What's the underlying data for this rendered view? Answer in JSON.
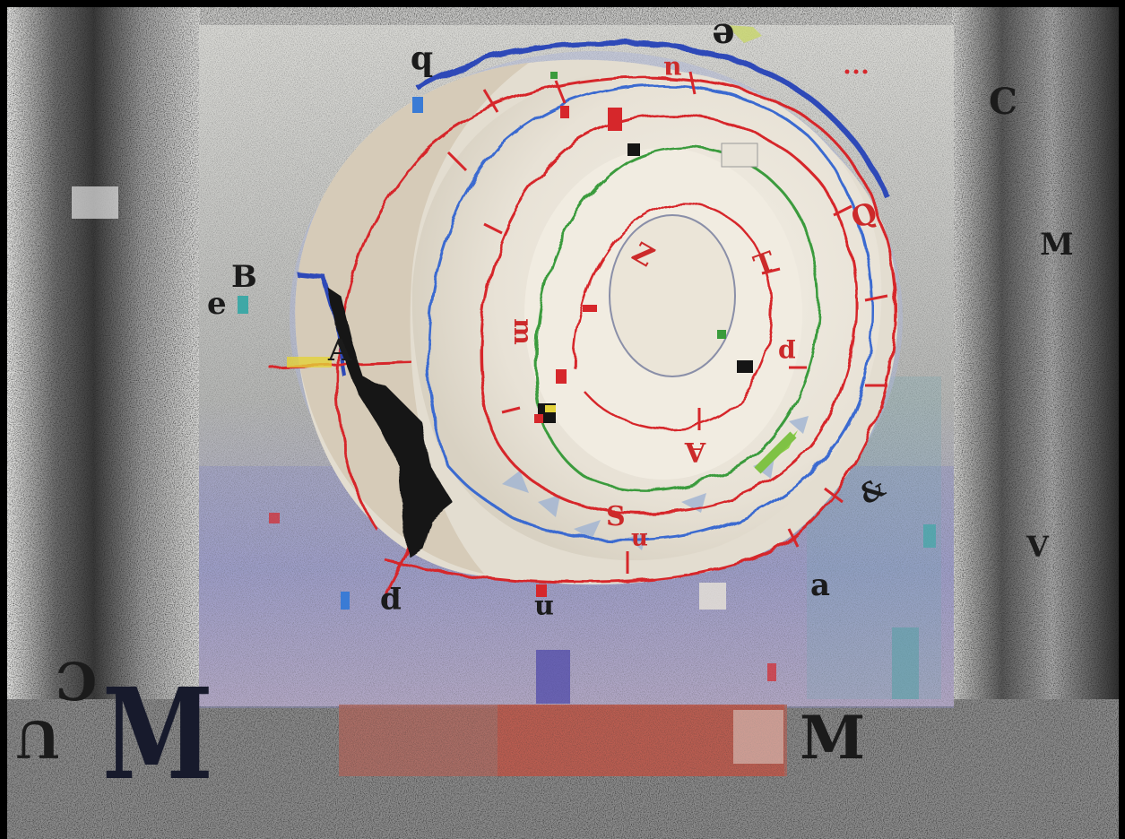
{
  "artwork": {
    "background": "#000000",
    "colors": {
      "paper_gray": "#b9b9b6",
      "noise_dark": "#2b2b2b",
      "inner_panel": "#c9c8c2",
      "spiral_paper": "#ece7dc",
      "red_thread": "#d6272b",
      "blue_thread": "#2d49b8",
      "green_thread": "#3a9b3c",
      "black_shape": "#151515",
      "ink_letter": "#1b1b1b",
      "red_letter": "#cc2a2a"
    }
  },
  "letters": {
    "b_top": "b",
    "e_top": "e",
    "u_top": "u",
    "c_right": "C",
    "m_right": "M",
    "v_right": "V",
    "e_left": "e",
    "b_left": "B",
    "a_left": "A",
    "z_center": "Z",
    "t_center": "T",
    "q_center": "Q",
    "p_center": "p",
    "a_center": "A",
    "s_bottom": "S",
    "amp_right": "&",
    "a_bottom": "a",
    "p_bottom": "p",
    "n_bottom": "n",
    "u_bottomleft": "U",
    "c_bottomleft": "C",
    "m_bottomleft": "M",
    "m_bottom": "M",
    "m_center": "m"
  }
}
